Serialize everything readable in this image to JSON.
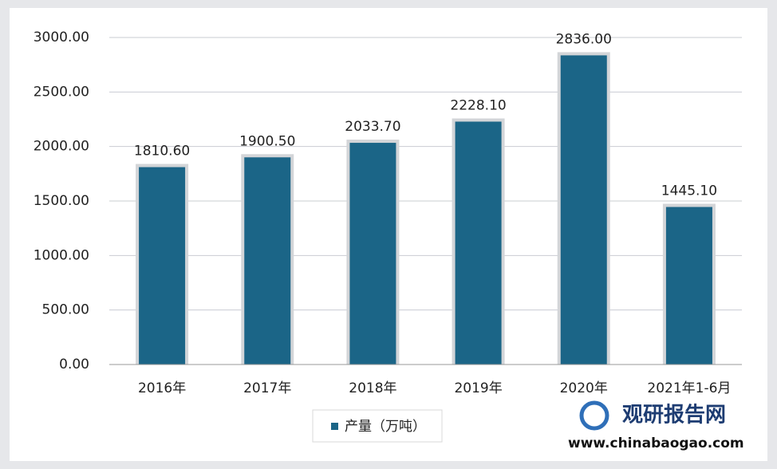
{
  "chart_data": {
    "type": "bar",
    "categories": [
      "2016年",
      "2017年",
      "2018年",
      "2019年",
      "2020年",
      "2021年1-6月"
    ],
    "series": [
      {
        "name": "产量（万吨）",
        "color": "#1b6587",
        "values": [
          1810.6,
          1900.5,
          2033.7,
          2228.1,
          2836,
          1445.1
        ],
        "value_labels": [
          "1810.60",
          "1900.50",
          "2033.70",
          "2228.10",
          "2836.00",
          "1445.10"
        ]
      }
    ],
    "ylim": [
      0,
      3000
    ],
    "yticks": [
      {
        "value": 0,
        "label": "0.00"
      },
      {
        "value": 500,
        "label": "500.00"
      },
      {
        "value": 1000,
        "label": "1000.00"
      },
      {
        "value": 1500,
        "label": "1500.00"
      },
      {
        "value": 2000,
        "label": "2000.00"
      },
      {
        "value": 2500,
        "label": "2500.00"
      },
      {
        "value": 3000,
        "label": "3000.00"
      }
    ],
    "grid": true,
    "legend": "bottom",
    "watermark": {
      "name": "观研报告网",
      "url": "www.chinabaogao.com"
    }
  }
}
